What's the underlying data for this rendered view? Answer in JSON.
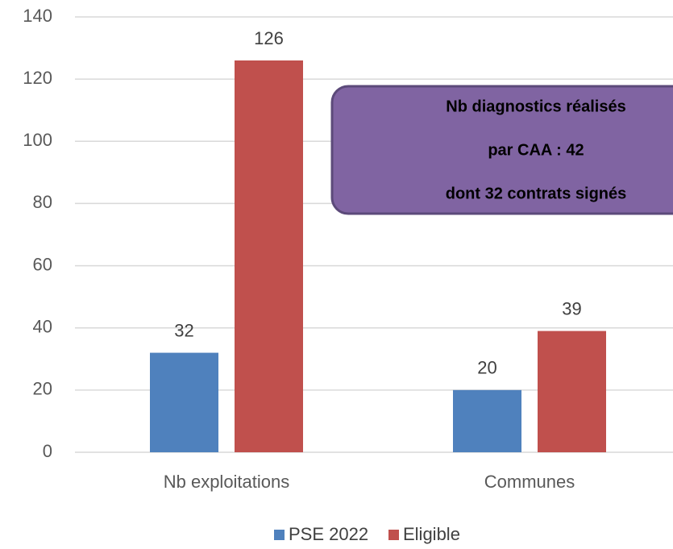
{
  "chart_data": {
    "type": "bar",
    "categories": [
      "Nb exploitations",
      "Communes"
    ],
    "series": [
      {
        "name": "PSE 2022",
        "color": "#4f81bd",
        "values": [
          32,
          20
        ]
      },
      {
        "name": "Eligible",
        "color": "#c0504d",
        "values": [
          126,
          39
        ]
      }
    ],
    "ylim": [
      0,
      140
    ],
    "yticks": [
      0,
      20,
      40,
      60,
      80,
      100,
      120,
      140
    ],
    "grid": true,
    "legend": "bottom",
    "annotation": [
      "Nb diagnostics réalisés",
      "par CAA  : 42",
      "dont 32 contrats signés"
    ]
  }
}
